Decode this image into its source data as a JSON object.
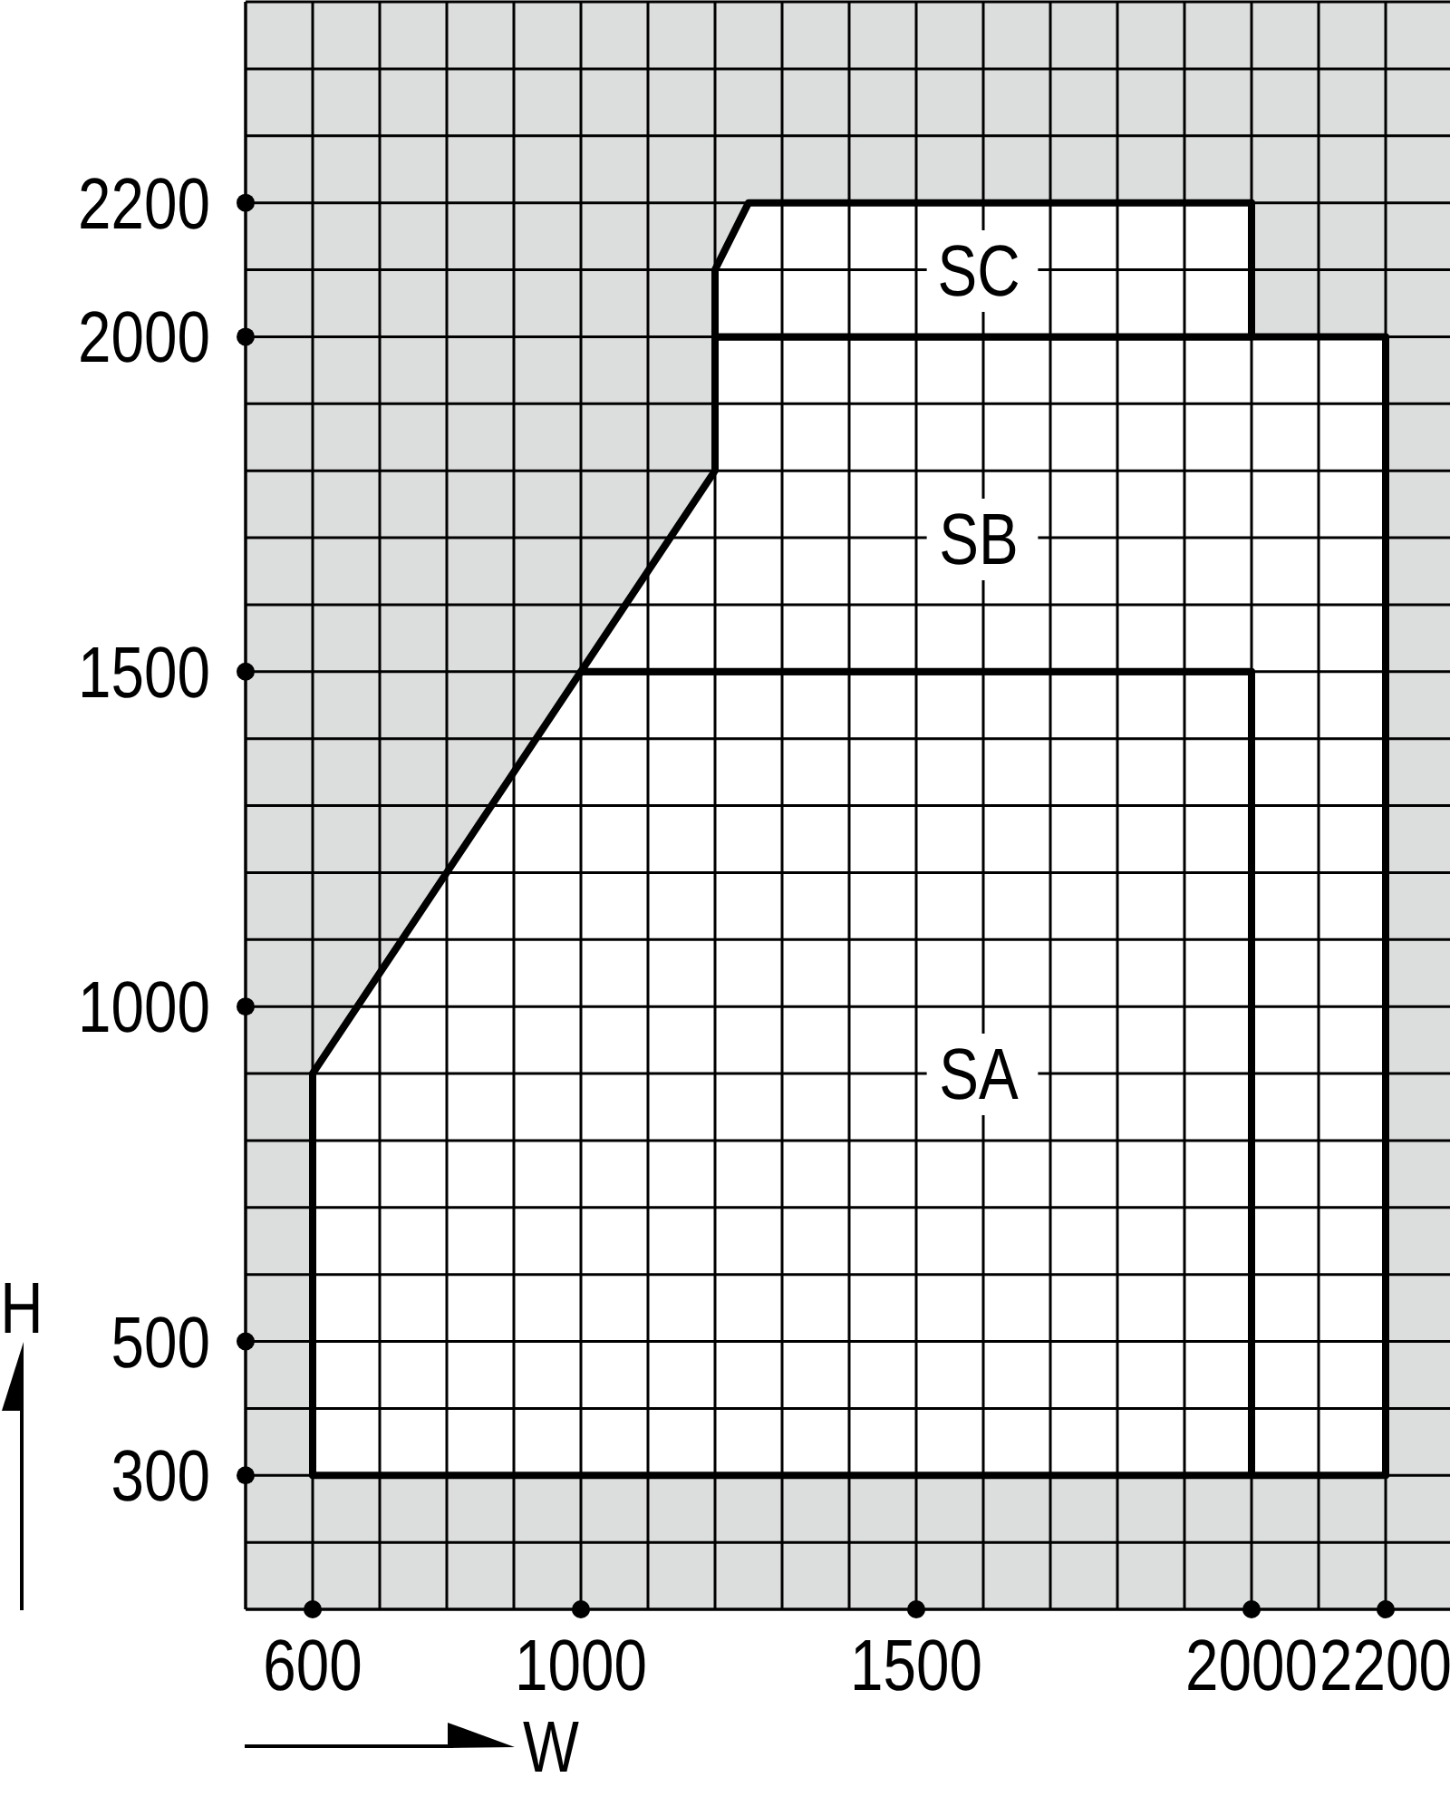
{
  "chart_data": {
    "type": "area",
    "xlabel": "W",
    "ylabel": "H",
    "xlim": [
      500,
      2300
    ],
    "ylim": [
      100,
      2500
    ],
    "xticks": [
      {
        "value": 500,
        "label": null
      },
      600,
      {
        "value": 700,
        "label": null
      },
      {
        "value": 800,
        "label": null
      },
      {
        "value": 900,
        "label": null
      },
      1000,
      {
        "value": 1100,
        "label": null
      },
      {
        "value": 1200,
        "label": null
      },
      {
        "value": 1300,
        "label": null
      },
      {
        "value": 1400,
        "label": null
      },
      1500,
      {
        "value": 1600,
        "label": null
      },
      {
        "value": 1700,
        "label": null
      },
      {
        "value": 1800,
        "label": null
      },
      {
        "value": 1900,
        "label": null
      },
      2000,
      {
        "value": 2100,
        "label": null
      },
      2200
    ],
    "yticks": [
      {
        "value": 100,
        "label": null
      },
      {
        "value": 200,
        "label": null
      },
      300,
      {
        "value": 400,
        "label": null
      },
      500,
      {
        "value": 600,
        "label": null
      },
      {
        "value": 700,
        "label": null
      },
      {
        "value": 800,
        "label": null
      },
      {
        "value": 900,
        "label": null
      },
      1000,
      {
        "value": 1100,
        "label": null
      },
      {
        "value": 1200,
        "label": null
      },
      {
        "value": 1300,
        "label": null
      },
      {
        "value": 1400,
        "label": null
      },
      1500,
      {
        "value": 1600,
        "label": null
      },
      {
        "value": 1700,
        "label": null
      },
      {
        "value": 1800,
        "label": null
      },
      {
        "value": 1900,
        "label": null
      },
      2000,
      {
        "value": 2100,
        "label": null
      },
      2200,
      {
        "value": 2300,
        "label": null
      },
      {
        "value": 2400,
        "label": null
      },
      {
        "value": 2500,
        "label": null
      }
    ],
    "grid": true,
    "series": [
      {
        "name": "SA",
        "color": "#ffffff",
        "x": [
          600,
          600,
          1000,
          2000,
          2000
        ],
        "values": [
          300,
          900,
          1500,
          1500,
          300
        ]
      },
      {
        "name": "SB",
        "color": "#ffffff",
        "x": [
          1000,
          1200,
          1200,
          2200,
          2200,
          2000,
          2000
        ],
        "values": [
          1500,
          1800,
          2000,
          2000,
          300,
          300,
          1500
        ]
      },
      {
        "name": "SC",
        "color": "#ffffff",
        "x": [
          1200,
          1200,
          1250,
          2000,
          2000
        ],
        "values": [
          2000,
          2100,
          2200,
          2200,
          2000
        ]
      }
    ]
  }
}
